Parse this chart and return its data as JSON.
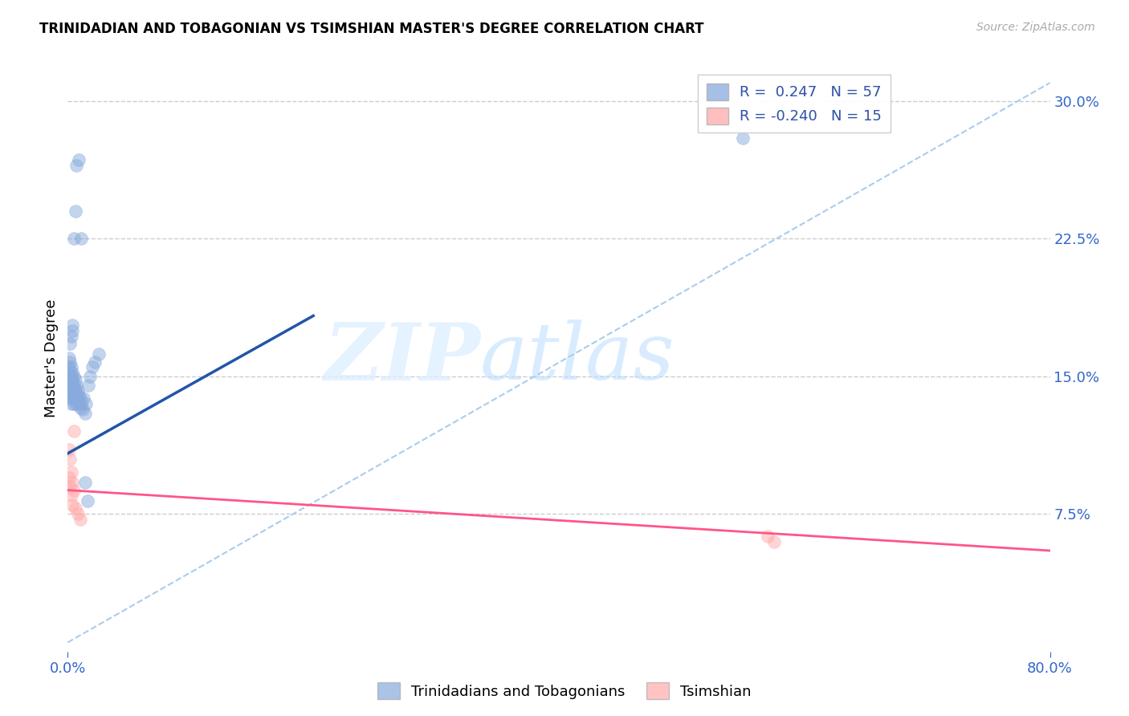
{
  "title": "TRINIDADIAN AND TOBAGONIAN VS TSIMSHIAN MASTER'S DEGREE CORRELATION CHART",
  "source": "Source: ZipAtlas.com",
  "ylabel": "Master's Degree",
  "yticks_labels": [
    "7.5%",
    "15.0%",
    "22.5%",
    "30.0%"
  ],
  "ytick_vals": [
    0.075,
    0.15,
    0.225,
    0.3
  ],
  "xlim": [
    0.0,
    0.8
  ],
  "ylim": [
    0.0,
    0.32
  ],
  "blue_color": "#88AADD",
  "pink_color": "#FFAAAA",
  "line_blue": "#2255AA",
  "line_pink": "#FF5588",
  "dashed_color": "#AACCEE",
  "watermark_zip": "ZIP",
  "watermark_atlas": "atlas",
  "legend_label1": "Trinidadians and Tobagonians",
  "legend_label2": "Tsimshian",
  "blue_x": [
    0.001,
    0.001,
    0.001,
    0.001,
    0.002,
    0.002,
    0.002,
    0.002,
    0.002,
    0.002,
    0.003,
    0.003,
    0.003,
    0.003,
    0.003,
    0.004,
    0.004,
    0.004,
    0.004,
    0.005,
    0.005,
    0.005,
    0.005,
    0.006,
    0.006,
    0.006,
    0.007,
    0.007,
    0.007,
    0.008,
    0.008,
    0.009,
    0.009,
    0.01,
    0.01,
    0.011,
    0.012,
    0.013,
    0.014,
    0.015,
    0.017,
    0.018,
    0.02,
    0.022,
    0.025,
    0.002,
    0.003,
    0.004,
    0.004,
    0.005,
    0.006,
    0.007,
    0.009,
    0.011,
    0.014,
    0.016,
    0.55
  ],
  "blue_y": [
    0.16,
    0.155,
    0.148,
    0.143,
    0.158,
    0.153,
    0.148,
    0.145,
    0.142,
    0.138,
    0.155,
    0.15,
    0.145,
    0.14,
    0.135,
    0.152,
    0.148,
    0.143,
    0.138,
    0.15,
    0.145,
    0.14,
    0.135,
    0.148,
    0.143,
    0.138,
    0.145,
    0.14,
    0.135,
    0.142,
    0.138,
    0.14,
    0.135,
    0.138,
    0.133,
    0.135,
    0.132,
    0.138,
    0.13,
    0.135,
    0.145,
    0.15,
    0.155,
    0.158,
    0.162,
    0.168,
    0.172,
    0.175,
    0.178,
    0.225,
    0.24,
    0.265,
    0.268,
    0.225,
    0.092,
    0.082,
    0.28
  ],
  "pink_x": [
    0.001,
    0.001,
    0.002,
    0.002,
    0.003,
    0.003,
    0.004,
    0.004,
    0.005,
    0.005,
    0.006,
    0.008,
    0.01,
    0.57,
    0.575
  ],
  "pink_y": [
    0.11,
    0.095,
    0.105,
    0.09,
    0.098,
    0.085,
    0.092,
    0.08,
    0.088,
    0.12,
    0.078,
    0.075,
    0.072,
    0.063,
    0.06
  ],
  "blue_line_x": [
    0.0,
    0.2
  ],
  "blue_line_y": [
    0.108,
    0.183
  ],
  "pink_line_x": [
    0.0,
    0.8
  ],
  "pink_line_y": [
    0.088,
    0.055
  ],
  "dashed_line_x": [
    0.0,
    0.8
  ],
  "dashed_line_y": [
    0.005,
    0.31
  ]
}
